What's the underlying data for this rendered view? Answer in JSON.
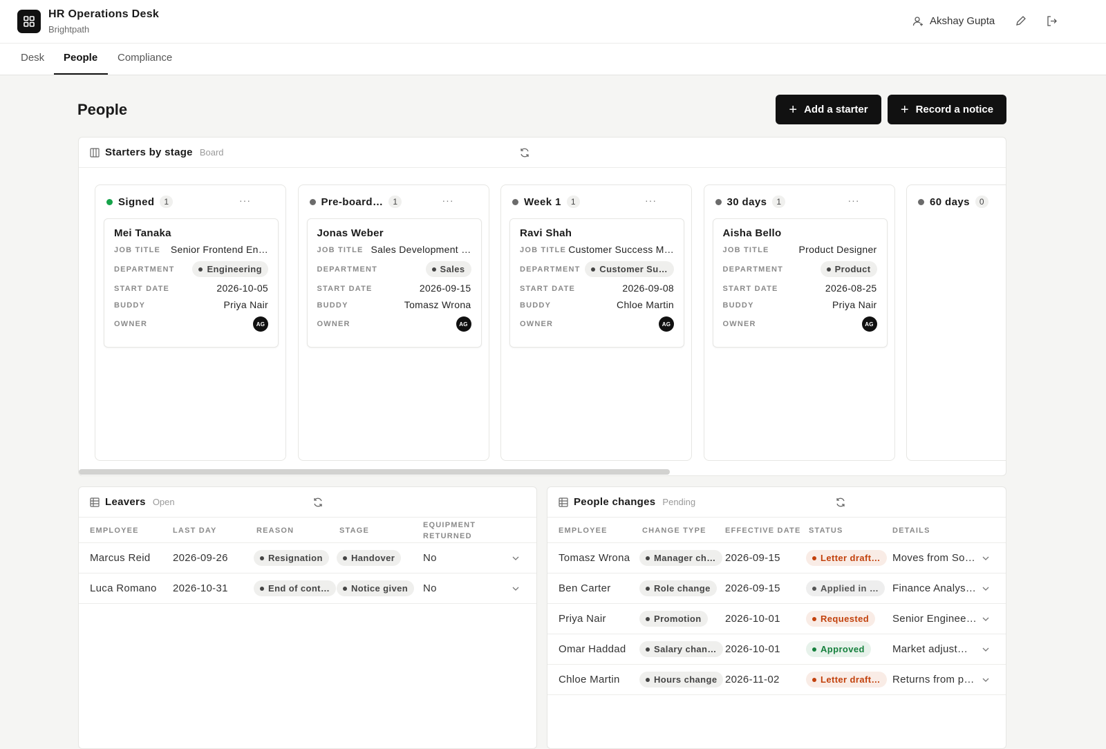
{
  "header": {
    "title": "HR Operations Desk",
    "subtitle": "Brightpath",
    "user": "Akshay Gupta"
  },
  "tabs": [
    "Desk",
    "People",
    "Compliance"
  ],
  "page": {
    "title": "People",
    "actions": [
      "Add a starter",
      "Record a notice"
    ]
  },
  "board": {
    "title": "Starters by stage",
    "tag": "Board",
    "field_labels": [
      "JOB TITLE",
      "DEPARTMENT",
      "START DATE",
      "BUDDY",
      "OWNER"
    ],
    "columns": [
      {
        "name": "Signed",
        "count": 1,
        "color": "#16a34a",
        "cards": [
          {
            "name": "Mei Tanaka",
            "job_title": "Senior Frontend En…",
            "department": "Engineering",
            "start_date": "2026-10-05",
            "buddy": "Priya Nair",
            "owner": "AG"
          }
        ]
      },
      {
        "name": "Pre-board…",
        "count": 1,
        "color": "#6b6b6b",
        "cards": [
          {
            "name": "Jonas Weber",
            "job_title": "Sales Development …",
            "department": "Sales",
            "start_date": "2026-09-15",
            "buddy": "Tomasz Wrona",
            "owner": "AG"
          }
        ]
      },
      {
        "name": "Week 1",
        "count": 1,
        "color": "#6b6b6b",
        "cards": [
          {
            "name": "Ravi Shah",
            "job_title": "Customer Success M…",
            "department": "Customer Su…",
            "start_date": "2026-09-08",
            "buddy": "Chloe Martin",
            "owner": "AG"
          }
        ]
      },
      {
        "name": "30 days",
        "count": 1,
        "color": "#6b6b6b",
        "cards": [
          {
            "name": "Aisha Bello",
            "job_title": "Product Designer",
            "department": "Product",
            "start_date": "2026-08-25",
            "buddy": "Priya Nair",
            "owner": "AG"
          }
        ]
      },
      {
        "name": "60 days",
        "count": 0,
        "color": "#6b6b6b",
        "cards": []
      }
    ]
  },
  "leavers": {
    "title": "Leavers",
    "tag": "Open",
    "columns": [
      "EMPLOYEE",
      "LAST DAY",
      "REASON",
      "STAGE",
      "EQUIPMENT RETURNED"
    ],
    "rows": [
      [
        "Marcus Reid",
        "2026-09-26",
        "Resignation",
        "Handover",
        "No"
      ],
      [
        "Luca Romano",
        "2026-10-31",
        "End of cont…",
        "Notice given",
        "No"
      ]
    ]
  },
  "changes": {
    "title": "People changes",
    "tag": "Pending",
    "columns": [
      "EMPLOYEE",
      "CHANGE TYPE",
      "EFFECTIVE DATE",
      "STATUS",
      "DETAILS"
    ],
    "rows": [
      {
        "cells": [
          "Tomasz Wrona",
          "Manager ch…",
          "2026-09-15",
          "Letter draft…",
          "Moves from So…"
        ],
        "status_color": "#c2410c"
      },
      {
        "cells": [
          "Ben Carter",
          "Role change",
          "2026-09-15",
          "Applied in …",
          "Finance Analys…"
        ],
        "status_color": "#555555"
      },
      {
        "cells": [
          "Priya Nair",
          "Promotion",
          "2026-10-01",
          "Requested",
          "Senior Enginee…"
        ],
        "status_color": "#c2410c"
      },
      {
        "cells": [
          "Omar Haddad",
          "Salary chan…",
          "2026-10-01",
          "Approved",
          "Market adjust…"
        ],
        "status_color": "#15803d"
      },
      {
        "cells": [
          "Chloe Martin",
          "Hours change",
          "2026-11-02",
          "Letter draft…",
          "Returns from p…"
        ],
        "status_color": "#c2410c"
      }
    ]
  }
}
